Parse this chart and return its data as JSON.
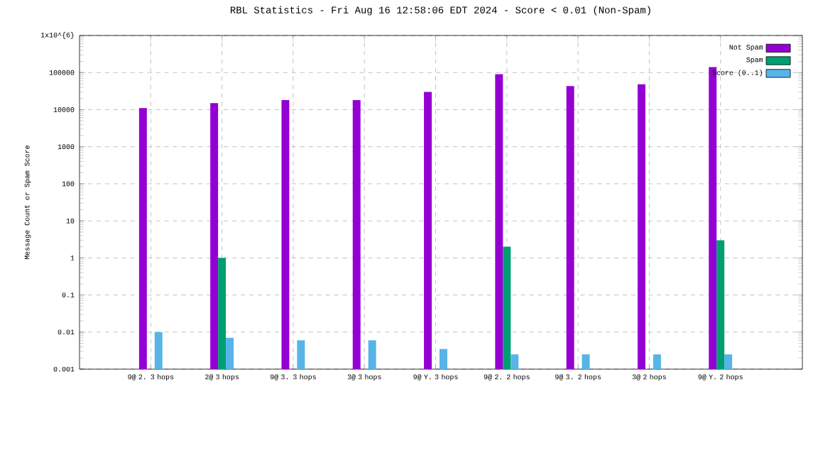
{
  "chart_data": {
    "type": "bar",
    "title": "RBL Statistics - Fri Aug 16 12:58:06 EDT 2024 - Score < 0.01 (Non-Spam)",
    "ylabel": "Message Count or Spam Score",
    "categories": [
      "9@ 2. 3 hops",
      "2@ 3 hops",
      "9@ 3. 3 hops",
      "3@ 3 hops",
      "9@ Y. 3 hops",
      "9@ 2. 2 hops",
      "9@ 3. 2 hops",
      "3@ 2 hops",
      "9@ Y. 2 hops"
    ],
    "series": [
      {
        "name": "Not Spam",
        "color": "#9400d3",
        "values": [
          11000,
          15000,
          18000,
          18000,
          30000,
          90000,
          43000,
          48000,
          140000
        ]
      },
      {
        "name": "Spam",
        "color": "#009e73",
        "values": [
          null,
          1,
          null,
          null,
          null,
          2,
          null,
          null,
          3
        ]
      },
      {
        "name": "Score (0..1)",
        "color": "#56b4e9",
        "values": [
          0.01,
          0.007,
          0.006,
          0.006,
          0.0035,
          0.0025,
          0.0025,
          0.0025,
          0.0025
        ]
      }
    ],
    "log": "y",
    "ylim": [
      0.001,
      1000000
    ],
    "yticks": [
      0.001,
      0.01,
      0.1,
      1,
      10,
      100,
      1000,
      10000,
      100000,
      {
        "value": 1000000,
        "label": "1x10^{6}"
      }
    ],
    "grid": true,
    "legend": "top right"
  }
}
